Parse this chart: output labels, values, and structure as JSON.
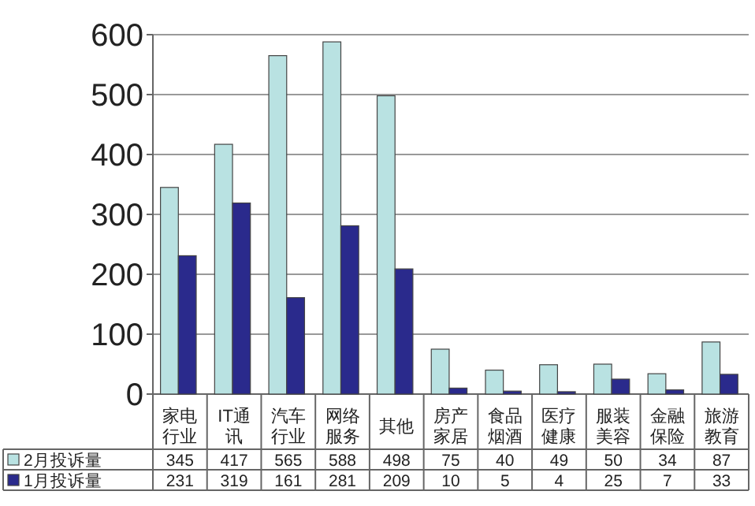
{
  "chart_data": {
    "type": "bar",
    "categories": [
      "家电行业",
      "IT通讯",
      "汽车行业",
      "网络服务",
      "其他",
      "房产家居",
      "食品烟酒",
      "医疗健康",
      "服装美容",
      "金融保险",
      "旅游教育"
    ],
    "series": [
      {
        "name": "2月投诉量",
        "color": "#b9e2e2",
        "values": [
          345,
          417,
          565,
          588,
          498,
          75,
          40,
          49,
          50,
          34,
          87
        ]
      },
      {
        "name": "1月投诉量",
        "color": "#2a2a8c",
        "values": [
          231,
          319,
          161,
          281,
          209,
          10,
          5,
          4,
          25,
          7,
          33
        ]
      }
    ],
    "ylim": [
      0,
      600
    ],
    "yticks": [
      0,
      100,
      200,
      300,
      400,
      500,
      600
    ],
    "grid": "y",
    "legend": "bottom",
    "data_labels": true
  }
}
